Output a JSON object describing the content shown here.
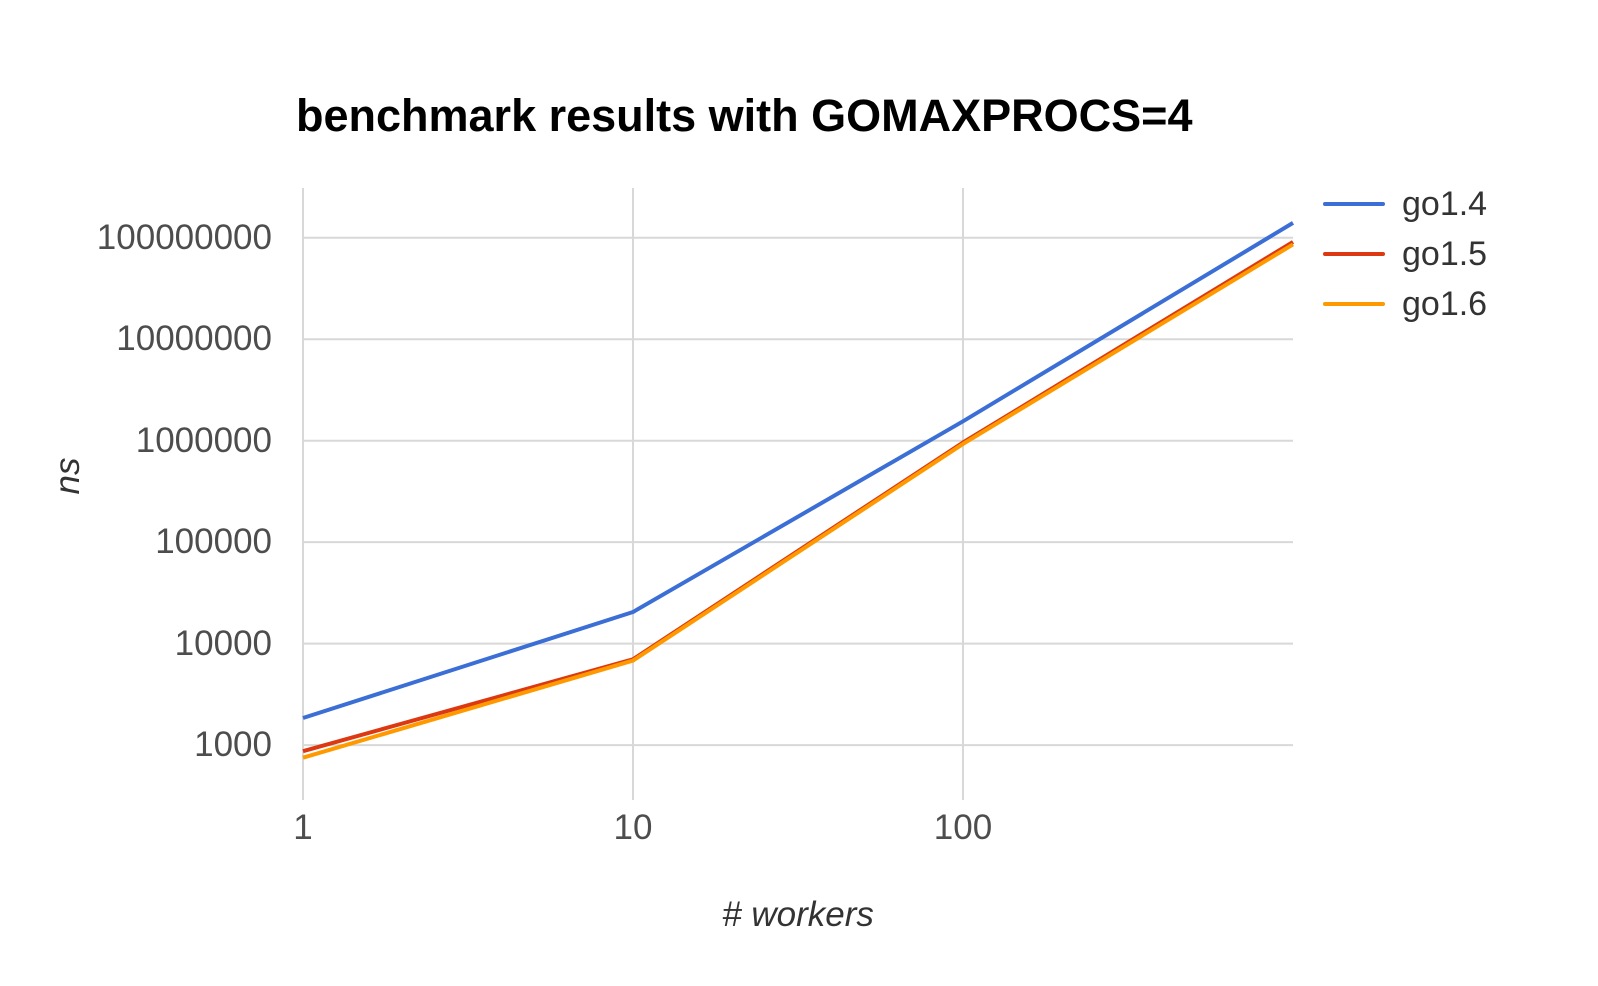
{
  "chart_data": {
    "type": "line",
    "title": "benchmark results with GOMAXPROCS=4",
    "xlabel": "# workers",
    "ylabel": "ns",
    "x_scale": "log",
    "y_scale": "log",
    "grid": true,
    "legend_position": "right",
    "xlim": [
      1,
      1000
    ],
    "ylim": [
      337,
      309000000
    ],
    "x_ticks": [
      1,
      10,
      100
    ],
    "y_ticks": [
      1000,
      10000,
      100000,
      1000000,
      10000000,
      100000000
    ],
    "x": [
      1,
      10,
      100,
      1000
    ],
    "series": [
      {
        "name": "go1.4",
        "color": "#3C6FD6",
        "values": [
          1850,
          20500,
          1550000,
          140000000
        ]
      },
      {
        "name": "go1.5",
        "color": "#DC3912",
        "values": [
          870,
          7000,
          960000,
          91000000
        ]
      },
      {
        "name": "go1.6",
        "color": "#FF9900",
        "values": [
          750,
          6800,
          930000,
          86000000
        ]
      }
    ],
    "gridline_color": "#D8D8D8"
  }
}
